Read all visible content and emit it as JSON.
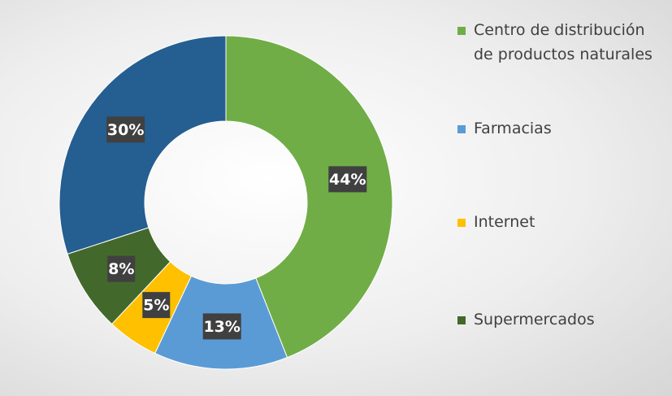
{
  "chart_data": {
    "type": "donut",
    "categories": [
      "Centro de distribución de productos naturales",
      "Farmacias",
      "Internet",
      "Supermercados",
      null
    ],
    "values": [
      44,
      13,
      5,
      8,
      30
    ],
    "value_labels": [
      "44%",
      "13%",
      "5%",
      "8%",
      "30%"
    ],
    "colors": [
      "#70ad47",
      "#5b9bd5",
      "#ffc000",
      "#43682b",
      "#255e91"
    ],
    "legend": "right"
  }
}
